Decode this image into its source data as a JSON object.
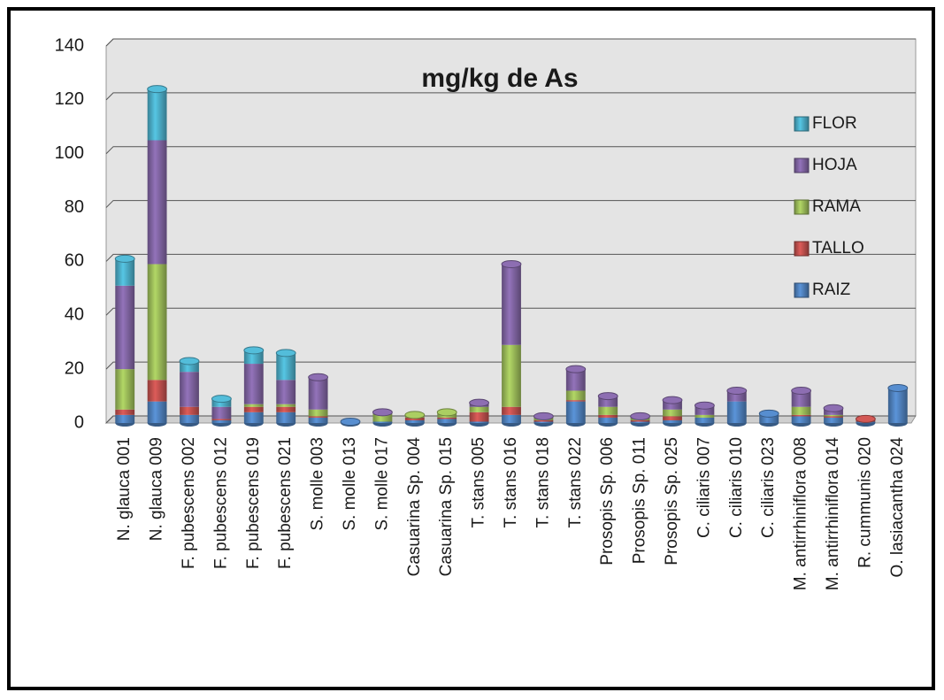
{
  "chart_data": {
    "type": "stacked_bar",
    "title": "mg/kg de As",
    "categories": [
      "N. glauca 001",
      "N. glauca 009",
      "F. pubescens 002",
      "F. pubescens 012",
      "F. pubescens 019",
      "F. pubescens 021",
      "S. molle 003",
      "S. molle 013",
      "S. molle 017",
      "Casuarina Sp. 004",
      "Casuarina Sp. 015",
      "T. stans 005",
      "T. stans 016",
      "T. stans 018",
      "T. stans 022",
      "Prosopis Sp. 006",
      "Prosopis Sp. 011",
      "Prosopis Sp. 025",
      "C. ciliaris 007",
      "C. ciliaris 010",
      "C. ciliaris 023",
      "M. antirrhiniflora 008",
      "M. antirrhiniflora 014",
      "R. cummunis 020",
      "O. lasiacantha 024"
    ],
    "series": [
      {
        "name": "RAIZ",
        "color": "#4f81bd",
        "values": [
          3,
          8,
          3,
          1,
          4,
          4,
          2,
          0.5,
          0.5,
          1,
          1.5,
          0.5,
          3,
          0.5,
          8,
          2,
          0.5,
          1,
          2,
          8,
          3.5,
          2.5,
          2,
          0.5,
          13
        ]
      },
      {
        "name": "TALLO",
        "color": "#c0504d",
        "values": [
          2,
          8,
          3,
          0.5,
          2,
          2,
          0.5,
          0,
          0,
          1,
          0.5,
          3.5,
          3,
          0.5,
          0.5,
          1,
          0.5,
          1.5,
          0,
          0,
          0,
          0.5,
          0.5,
          1,
          0
        ]
      },
      {
        "name": "RAMA",
        "color": "#9bbb59",
        "values": [
          15,
          43,
          0,
          0,
          1,
          1,
          2.5,
          0,
          3,
          1,
          2,
          2,
          23,
          1,
          3.5,
          3,
          1,
          2.5,
          1,
          0,
          0,
          3,
          0.5,
          0,
          0
        ]
      },
      {
        "name": "HOJA",
        "color": "#8064a2",
        "values": [
          31,
          46,
          13,
          4.5,
          15,
          9,
          12,
          0,
          0.5,
          0,
          0,
          1.5,
          30,
          0.5,
          8,
          4,
          0.5,
          3.5,
          3.5,
          4,
          0,
          6,
          2.5,
          0,
          0
        ]
      },
      {
        "name": "FLOR",
        "color": "#4bacc6",
        "values": [
          10,
          19,
          4,
          3,
          5,
          10,
          0,
          0,
          0,
          0,
          0,
          0,
          0,
          0,
          0,
          0,
          0,
          0,
          0,
          0,
          0,
          0,
          0,
          0,
          0
        ]
      }
    ],
    "ylim": [
      0,
      140
    ],
    "yticks": [
      0,
      20,
      40,
      60,
      80,
      100,
      120,
      140
    ],
    "grid": true
  }
}
